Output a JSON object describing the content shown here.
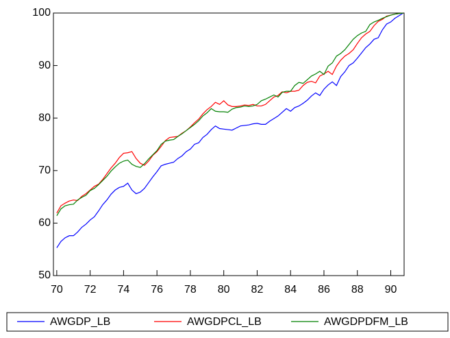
{
  "chart_data": {
    "type": "line",
    "x": [
      70,
      70.25,
      70.5,
      70.75,
      71,
      71.25,
      71.5,
      71.75,
      72,
      72.25,
      72.5,
      72.75,
      73,
      73.25,
      73.5,
      73.75,
      74,
      74.25,
      74.5,
      74.75,
      75,
      75.25,
      75.5,
      75.75,
      76,
      76.25,
      76.5,
      76.75,
      77,
      77.25,
      77.5,
      77.75,
      78,
      78.25,
      78.5,
      78.75,
      79,
      79.25,
      79.5,
      79.75,
      80,
      80.25,
      80.5,
      80.75,
      81,
      81.25,
      81.5,
      81.75,
      82,
      82.25,
      82.5,
      82.75,
      83,
      83.25,
      83.5,
      83.75,
      84,
      84.25,
      84.5,
      84.75,
      85,
      85.25,
      85.5,
      85.75,
      86,
      86.25,
      86.5,
      86.75,
      87,
      87.25,
      87.5,
      87.75,
      88,
      88.25,
      88.5,
      88.75,
      89,
      89.25,
      89.5,
      89.75,
      90,
      90.25,
      90.5,
      90.75
    ],
    "series": [
      {
        "name": "AWGDP_LB",
        "color": "#0000ff",
        "values": [
          55.3,
          56.5,
          57.2,
          57.6,
          57.6,
          58.3,
          59.2,
          59.8,
          60.6,
          61.2,
          62.3,
          63.5,
          64.4,
          65.5,
          66.3,
          66.8,
          67.0,
          67.6,
          66.3,
          65.6,
          65.9,
          66.6,
          67.7,
          68.8,
          69.8,
          70.9,
          71.2,
          71.4,
          71.6,
          72.3,
          72.8,
          73.6,
          74.1,
          75.0,
          75.3,
          76.3,
          76.9,
          77.8,
          78.5,
          78.0,
          77.9,
          77.8,
          77.7,
          78.1,
          78.5,
          78.6,
          78.7,
          78.9,
          79.0,
          78.8,
          78.8,
          79.4,
          79.9,
          80.4,
          81.1,
          81.8,
          81.3,
          82.0,
          82.3,
          82.8,
          83.4,
          84.2,
          84.8,
          84.3,
          85.5,
          86.3,
          86.9,
          86.2,
          87.9,
          88.8,
          90.0,
          90.5,
          91.4,
          92.4,
          93.4,
          94.1,
          95.0,
          95.3,
          96.8,
          97.9,
          98.3,
          99.0,
          99.5,
          100.0
        ]
      },
      {
        "name": "AWGDPCL_LB",
        "color": "#ff0000",
        "values": [
          61.9,
          63.3,
          63.8,
          64.2,
          64.4,
          64.3,
          65.1,
          65.6,
          66.3,
          67.0,
          67.4,
          68.3,
          69.4,
          70.5,
          71.4,
          72.5,
          73.3,
          73.4,
          73.6,
          72.3,
          71.4,
          71.0,
          71.8,
          72.9,
          73.6,
          74.6,
          75.7,
          76.3,
          76.4,
          76.5,
          77.1,
          77.6,
          78.3,
          79.1,
          79.8,
          80.8,
          81.6,
          82.2,
          83.0,
          82.6,
          83.3,
          82.5,
          82.2,
          82.2,
          82.3,
          82.5,
          82.4,
          82.6,
          82.3,
          82.3,
          82.6,
          83.3,
          84.0,
          84.3,
          85.0,
          84.8,
          85.1,
          85.1,
          85.3,
          86.2,
          86.8,
          87.0,
          86.7,
          88.0,
          88.4,
          88.9,
          88.3,
          89.9,
          91.0,
          91.8,
          92.3,
          93.0,
          94.2,
          95.3,
          96.0,
          96.5,
          97.6,
          98.4,
          98.8,
          99.4,
          99.6,
          99.8,
          99.9,
          100.0
        ]
      },
      {
        "name": "AWGDPDFM_LB",
        "color": "#008000",
        "values": [
          61.4,
          62.7,
          63.3,
          63.5,
          63.6,
          64.4,
          64.9,
          65.3,
          66.2,
          66.6,
          67.3,
          68.1,
          68.9,
          69.9,
          70.7,
          71.4,
          71.8,
          72.0,
          71.2,
          70.8,
          70.6,
          71.3,
          72.2,
          73.0,
          73.8,
          75.0,
          75.6,
          75.8,
          75.9,
          76.5,
          77.0,
          77.6,
          78.2,
          78.8,
          79.5,
          80.4,
          81.0,
          81.8,
          81.3,
          81.2,
          81.2,
          81.1,
          81.7,
          82.0,
          82.1,
          82.3,
          82.2,
          82.3,
          82.6,
          83.3,
          83.6,
          84.0,
          84.4,
          84.0,
          84.9,
          85.1,
          85.1,
          86.2,
          86.8,
          86.6,
          87.3,
          88.0,
          88.4,
          88.9,
          88.3,
          89.9,
          90.5,
          91.8,
          92.3,
          93.0,
          94.0,
          95.0,
          95.7,
          96.2,
          96.5,
          97.8,
          98.3,
          98.6,
          99.0,
          99.3,
          99.6,
          99.8,
          99.9,
          100.0
        ]
      }
    ],
    "xlim": [
      69.8,
      90.8
    ],
    "xticks": [
      70,
      72,
      74,
      76,
      78,
      80,
      82,
      84,
      86,
      88,
      90
    ],
    "ylim": [
      50,
      100
    ],
    "yticks": [
      50,
      60,
      70,
      80,
      90,
      100
    ]
  }
}
